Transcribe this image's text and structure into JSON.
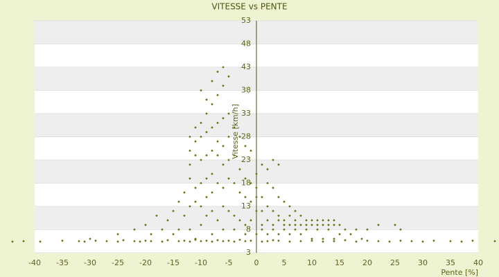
{
  "chart_data": {
    "type": "scatter",
    "title": "VITESSE vs PENTE",
    "x_label": "Pente [%]",
    "y_label": "Vitesse [km/h]",
    "color": "#66760f",
    "grid": true,
    "xlim": [
      -40,
      40
    ],
    "xticks": [
      -40,
      -35,
      -30,
      -25,
      -20,
      -15,
      -10,
      -5,
      0,
      5,
      10,
      15,
      20,
      25,
      30,
      35,
      40
    ],
    "ylim": [
      3,
      53
    ],
    "yticks": [
      3,
      8,
      13,
      18,
      23,
      28,
      33,
      38,
      43,
      48,
      53
    ],
    "x": [
      -44,
      -42,
      -39,
      -35,
      -32,
      -31,
      -29,
      -27,
      -25,
      -24,
      -22,
      -21,
      -20,
      -19,
      -17,
      -16,
      -14,
      -13,
      -12,
      -11,
      -10,
      -9,
      -8,
      -7,
      -6,
      -5,
      -4,
      -3,
      -2,
      -1,
      1,
      2,
      3,
      4,
      6,
      8,
      10,
      12,
      14,
      16,
      18,
      20,
      22,
      24,
      26,
      28,
      30,
      32,
      35,
      37,
      39,
      43,
      -10,
      -9,
      -8,
      -7,
      -6,
      -5,
      -6,
      -7,
      -8,
      -9,
      -10,
      -11,
      -12,
      -12,
      -12,
      -11,
      -10,
      -9,
      -8,
      -7,
      -6,
      -5,
      -4,
      -3,
      -2,
      -1,
      -5,
      -6,
      -7,
      -8,
      -9,
      -10,
      -11,
      -7,
      -6,
      -5,
      -4,
      -3,
      -2,
      -1,
      -8,
      -9,
      -10,
      -11,
      -12,
      -13,
      -14,
      -15,
      -16,
      -18,
      -20,
      -22,
      -17,
      -14,
      -13,
      -12,
      -11,
      -10,
      -9,
      -8,
      -7,
      -6,
      -5,
      -4,
      -3,
      -2,
      -1,
      -9,
      -8,
      -7,
      -6,
      -5,
      -4,
      -3,
      -2,
      -1,
      -10,
      -12,
      -6,
      -4,
      -2,
      -8,
      -11,
      -15,
      -19,
      -25,
      -30,
      0,
      1,
      2,
      3,
      4,
      2,
      3,
      4,
      5,
      6,
      7,
      1,
      2,
      3,
      4,
      5,
      6,
      7,
      8,
      9,
      10,
      11,
      12,
      13,
      14,
      15,
      1,
      2,
      3,
      4,
      5,
      6,
      7,
      8,
      9,
      10,
      11,
      12,
      13,
      14,
      16,
      18,
      20,
      22,
      25,
      26,
      1,
      3,
      5,
      7,
      9,
      11,
      13,
      15,
      17,
      19,
      0,
      0,
      0,
      0,
      1,
      2,
      4,
      6,
      8,
      10,
      12,
      14
    ],
    "values": [
      5.4,
      5.5,
      5.4,
      5.6,
      5.5,
      5.4,
      5.6,
      5.5,
      5.4,
      5.7,
      5.5,
      5.4,
      5.6,
      5.5,
      5.4,
      5.7,
      5.5,
      5.6,
      5.4,
      5.8,
      5.5,
      5.6,
      5.4,
      5.7,
      5.5,
      5.6,
      5.4,
      5.8,
      5.5,
      5.6,
      5.4,
      5.5,
      5.7,
      5.6,
      5.4,
      5.5,
      5.6,
      5.4,
      5.5,
      5.7,
      5.4,
      5.6,
      5.5,
      5.4,
      5.6,
      5.5,
      5.4,
      5.6,
      5.5,
      5.4,
      5.6,
      5.5,
      38,
      36,
      40,
      42,
      43,
      41,
      39,
      37,
      35,
      33,
      31,
      30,
      28,
      25,
      22,
      27,
      28,
      29,
      30,
      31,
      32,
      33,
      30,
      28,
      26,
      25,
      28,
      26,
      27,
      25,
      24,
      23,
      24,
      24,
      22,
      23,
      24,
      21,
      19,
      18,
      20,
      19,
      18,
      17,
      19,
      16,
      14,
      12,
      10,
      11,
      9,
      8,
      8,
      8,
      11,
      13,
      14,
      13,
      15,
      16,
      18,
      17,
      19,
      18,
      16,
      15,
      14,
      11,
      12,
      10,
      13,
      12,
      11,
      10,
      9,
      10,
      9,
      8,
      8,
      8,
      7,
      7,
      6,
      7,
      7,
      7,
      6,
      20,
      22,
      21,
      23,
      22,
      18,
      17,
      15,
      14,
      13,
      12,
      15,
      13,
      12,
      11,
      10,
      11,
      10,
      11,
      10,
      10,
      10,
      9,
      10,
      10,
      9,
      9,
      10,
      9,
      10,
      9,
      9,
      9,
      9,
      9,
      9,
      9,
      10,
      9,
      9,
      8,
      8,
      8,
      9,
      9,
      8,
      8,
      8,
      8,
      8,
      8,
      8,
      8,
      7,
      7,
      6,
      7,
      12,
      15,
      17,
      12,
      7,
      7,
      7,
      7,
      6,
      6,
      6
    ]
  }
}
